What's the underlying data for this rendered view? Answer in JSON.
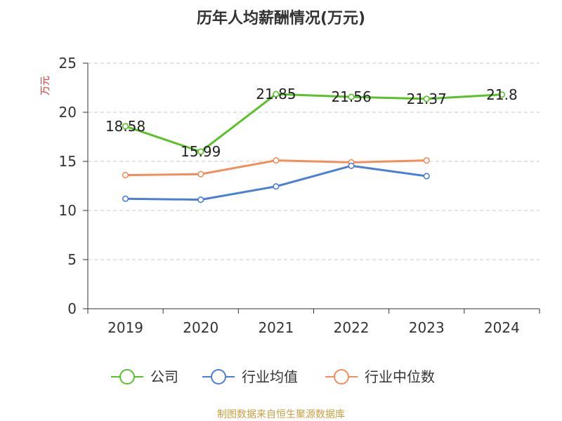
{
  "chart_data": {
    "type": "line",
    "title": "历年人均薪酬情况(万元)",
    "ylabel": "万元",
    "xlabel": "",
    "categories": [
      "2019",
      "2020",
      "2021",
      "2022",
      "2023",
      "2024"
    ],
    "ylim": [
      0,
      25
    ],
    "yticks": [
      0,
      5,
      10,
      15,
      20,
      25
    ],
    "grid": true,
    "legend_position": "bottom",
    "series": [
      {
        "name": "公司",
        "color": "#5ac12b",
        "values": [
          18.58,
          15.99,
          21.85,
          21.56,
          21.37,
          21.8
        ],
        "labels": [
          "18.58",
          "15.99",
          "21.85",
          "21.56",
          "21.37",
          "21.8"
        ]
      },
      {
        "name": "行业均值",
        "color": "#4a7fd6",
        "values": [
          11.2,
          11.1,
          12.45,
          14.55,
          13.5,
          null
        ]
      },
      {
        "name": "行业中位数",
        "color": "#f58d5b",
        "values": [
          13.6,
          13.7,
          15.1,
          14.9,
          15.1,
          null
        ]
      }
    ]
  },
  "source": "制图数据来自恒生聚源数据库"
}
